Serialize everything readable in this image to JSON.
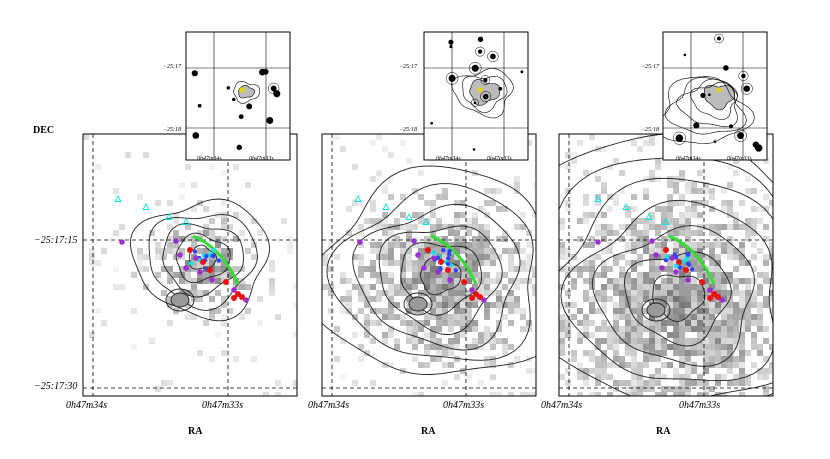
{
  "axis": {
    "ylabel": "DEC",
    "xlabel": "RA",
    "dec_ticks": [
      "−25:17:15",
      "−25:17:30"
    ],
    "ra_ticks": [
      "0h47m34s",
      "0h47m33s"
    ]
  },
  "insets": {
    "dec_ticks": [
      "−25:17",
      "−25:18"
    ],
    "ra_ticks": [
      "0h47m34s",
      "0h47m33s"
    ]
  },
  "marker_colors": {
    "triangles": "#00e5e5",
    "purple_points": "#9b30d0",
    "red_points": "#ee1111",
    "green_arc": "#33dd33",
    "blue_points": "#3344ff"
  },
  "panels": [
    {
      "id": "left",
      "extent_level": 1
    },
    {
      "id": "middle",
      "extent_level": 2
    },
    {
      "id": "right",
      "extent_level": 3
    }
  ]
}
